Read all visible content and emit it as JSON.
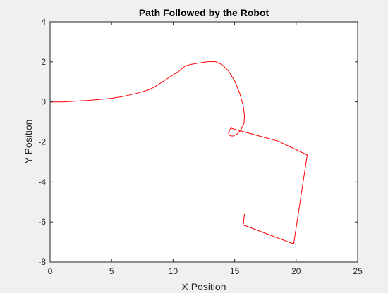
{
  "chart_data": {
    "type": "line",
    "title": "Path Followed by the Robot",
    "xlabel": "X Position",
    "ylabel": "Y Position",
    "xlim": [
      0,
      25
    ],
    "ylim": [
      -8,
      4
    ],
    "xticks": [
      0,
      5,
      10,
      15,
      20,
      25
    ],
    "yticks": [
      -8,
      -6,
      -4,
      -2,
      0,
      2,
      4
    ],
    "grid": false,
    "legend": "none",
    "colors": {
      "line": "#ff0000",
      "axes_bg": "#ffffff",
      "figure_bg": "#f0f0f0",
      "axis": "#262626"
    },
    "series": [
      {
        "x": [
          0,
          1,
          2,
          3,
          4,
          5,
          6,
          7,
          8,
          8.5,
          9,
          9.5,
          10,
          10.5,
          11,
          11.5,
          12,
          12.5,
          13,
          13.5,
          14,
          14.5,
          15,
          15.4,
          15.7,
          15.8,
          15.75,
          15.5,
          15.2,
          14.9,
          14.7,
          14.55,
          14.5,
          14.6,
          14.7,
          14.9,
          18.5,
          20.9,
          19.8,
          15.7,
          15.8
        ],
        "y": [
          0,
          0,
          0.03,
          0.07,
          0.12,
          0.18,
          0.28,
          0.42,
          0.6,
          0.75,
          0.95,
          1.15,
          1.35,
          1.55,
          1.8,
          1.88,
          1.93,
          1.98,
          2.02,
          2.0,
          1.85,
          1.55,
          1.05,
          0.45,
          -0.2,
          -0.7,
          -1.1,
          -1.4,
          -1.6,
          -1.7,
          -1.7,
          -1.65,
          -1.55,
          -1.4,
          -1.3,
          -1.35,
          -1.95,
          -2.65,
          -7.1,
          -6.15,
          -5.6
        ]
      }
    ]
  }
}
